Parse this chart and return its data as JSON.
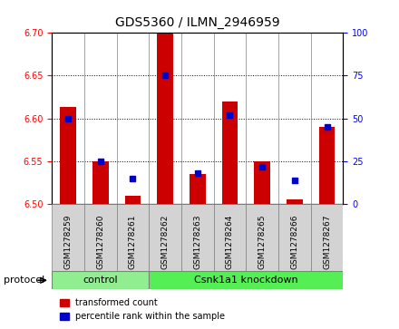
{
  "title": "GDS5360 / ILMN_2946959",
  "samples": [
    "GSM1278259",
    "GSM1278260",
    "GSM1278261",
    "GSM1278262",
    "GSM1278263",
    "GSM1278264",
    "GSM1278265",
    "GSM1278266",
    "GSM1278267"
  ],
  "transformed_count": [
    6.613,
    6.55,
    6.51,
    6.7,
    6.535,
    6.62,
    6.55,
    6.505,
    6.59
  ],
  "percentile_rank": [
    50,
    25,
    15,
    75,
    18,
    52,
    22,
    14,
    45
  ],
  "ylim_left": [
    6.5,
    6.7
  ],
  "ylim_right": [
    0,
    100
  ],
  "yticks_left": [
    6.5,
    6.55,
    6.6,
    6.65,
    6.7
  ],
  "yticks_right": [
    0,
    25,
    50,
    75,
    100
  ],
  "bar_color": "#cc0000",
  "dot_color": "#0000cc",
  "bar_bottom": 6.5,
  "control_color": "#90ee90",
  "knockdown_color": "#55ee55",
  "control_label": "control",
  "knockdown_label": "Csnk1a1 knockdown",
  "protocol_label": "protocol",
  "legend_red_label": "transformed count",
  "legend_blue_label": "percentile rank within the sample",
  "tick_area_color": "#d3d3d3"
}
